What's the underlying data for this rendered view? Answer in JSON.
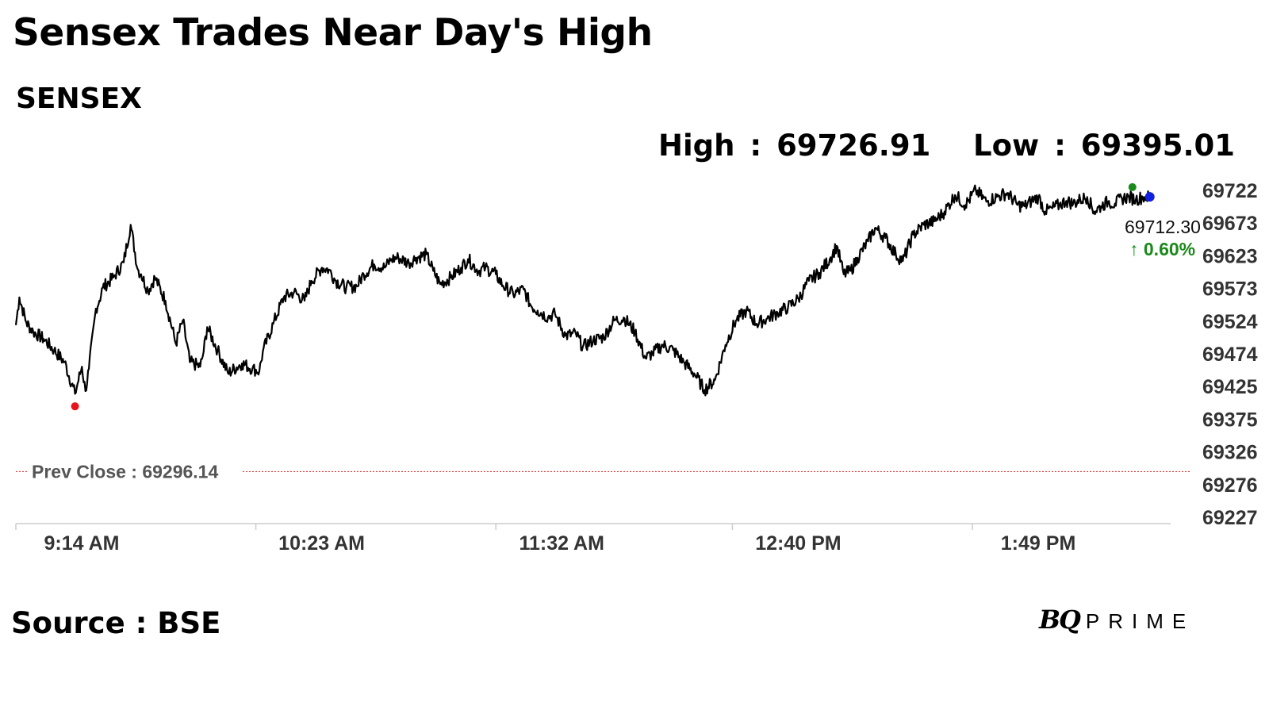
{
  "title": "Sensex Trades Near Day's High",
  "subtitle": "SENSEX",
  "stats": {
    "high_label": "High",
    "high_value": "69726.91",
    "low_label": "Low",
    "low_value": "69395.01",
    "separator": ":"
  },
  "source": "Source : BSE",
  "logo": {
    "bq": "BQ",
    "prime": "PRIME"
  },
  "colors": {
    "line": "#000000",
    "prev_close_line": "#e04040",
    "low_marker": "#e8141c",
    "high_marker": "#1a8a1a",
    "last_marker": "#1020e0",
    "change_up": "#1a8a1a",
    "axis": "#cccccc",
    "axis_text": "#333333"
  },
  "chart_data": {
    "type": "line",
    "title": "",
    "xlabel": "",
    "ylabel": "",
    "ylim": [
      69227,
      69722
    ],
    "y_ticks": [
      "69722",
      "69673",
      "69623",
      "69573",
      "69524",
      "69474",
      "69425",
      "69375",
      "69326",
      "69276",
      "69227"
    ],
    "x_range": [
      "9:14 AM",
      "2:40 PM"
    ],
    "x_ticks": [
      "9:14 AM",
      "10:23 AM",
      "11:32 AM",
      "12:40 PM",
      "1:49 PM"
    ],
    "x_tick_minutes": [
      0,
      69,
      138,
      206,
      275
    ],
    "series": [
      {
        "x_minutes": [
          0,
          1,
          3,
          5,
          8,
          11,
          14,
          17,
          19,
          20,
          21,
          23,
          24,
          25,
          28,
          31,
          33,
          35,
          36,
          38,
          40,
          43,
          46,
          48,
          50,
          53,
          54,
          55,
          58,
          61,
          65,
          68,
          70,
          71,
          74,
          77,
          80,
          83,
          85,
          88,
          90,
          92,
          95,
          98,
          100,
          103,
          106,
          108,
          110,
          113,
          115,
          118,
          120,
          122,
          125,
          128,
          130,
          133,
          135,
          138,
          140,
          143,
          146,
          148,
          150,
          153,
          155,
          158,
          161,
          163,
          166,
          169,
          172,
          175,
          178,
          181,
          183,
          186,
          189,
          192,
          195,
          198,
          201,
          204,
          207,
          210,
          213,
          216,
          219,
          222,
          225,
          228,
          231,
          234,
          236,
          238,
          240,
          242,
          245,
          247,
          250,
          253,
          255,
          258,
          261,
          264,
          267,
          270,
          273,
          276,
          279,
          282,
          285,
          288,
          290,
          292,
          294,
          296,
          298,
          300,
          302,
          304,
          306,
          308,
          310,
          312,
          314,
          316,
          318,
          320,
          322,
          324,
          325,
          326
        ],
        "values": [
          69518,
          69560,
          69522,
          69508,
          69497,
          69480,
          69462,
          69414,
          69455,
          69418,
          69452,
          69543,
          69555,
          69575,
          69590,
          69613,
          69670,
          69603,
          69595,
          69570,
          69590,
          69555,
          69490,
          69525,
          69462,
          69455,
          69478,
          69515,
          69480,
          69445,
          69460,
          69452,
          69448,
          69478,
          69520,
          69560,
          69568,
          69555,
          69585,
          69605,
          69602,
          69585,
          69575,
          69577,
          69595,
          69610,
          69605,
          69618,
          69620,
          69612,
          69620,
          69625,
          69600,
          69580,
          69590,
          69605,
          69618,
          69600,
          69605,
          69595,
          69578,
          69565,
          69572,
          69548,
          69540,
          69530,
          69535,
          69502,
          69505,
          69485,
          69495,
          69500,
          69525,
          69528,
          69508,
          69468,
          69475,
          69488,
          69480,
          69462,
          69445,
          69420,
          69435,
          69488,
          69525,
          69540,
          69520,
          69528,
          69537,
          69545,
          69558,
          69585,
          69597,
          69618,
          69638,
          69595,
          69600,
          69620,
          69645,
          69665,
          69650,
          69625,
          69615,
          69655,
          69670,
          69675,
          69690,
          69715,
          69700,
          69722,
          69705,
          69712,
          69718,
          69700,
          69698,
          69706,
          69712,
          69690,
          69695,
          69700,
          69706,
          69702,
          69708,
          69712,
          69690,
          69698,
          69705,
          69702,
          69710,
          69712,
          69708,
          69712,
          69712,
          69712
        ]
      }
    ],
    "prev_close": {
      "label": "Prev Close : 69296.14",
      "value": 69296.14
    },
    "markers": {
      "low": {
        "x_minutes": 17,
        "value": 69395.01
      },
      "high": {
        "x_minutes": 321,
        "value": 69726.91
      },
      "last": {
        "x_minutes": 326,
        "value": 69712.3
      }
    },
    "last_label": "69712.30",
    "change_label": "↑ 0.60%",
    "grid": false,
    "legend": "none"
  }
}
